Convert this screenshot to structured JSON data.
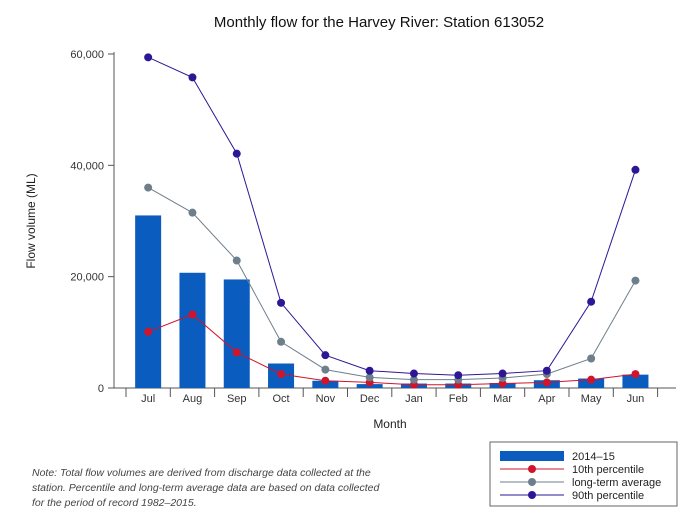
{
  "chart_data": {
    "type": "bar",
    "title": "Monthly flow for the Harvey River: Station 613052",
    "xlabel": "Month",
    "ylabel": "Flow volume (ML)",
    "ylim": [
      0,
      60000
    ],
    "yticks": [
      0,
      20000,
      40000,
      60000
    ],
    "ytick_labels": [
      "0",
      "20,000",
      "40,000",
      "60,000"
    ],
    "grid": false,
    "legend_position": "bottom-right",
    "categories": [
      "Jul",
      "Aug",
      "Sep",
      "Oct",
      "Nov",
      "Dec",
      "Jan",
      "Feb",
      "Mar",
      "Apr",
      "May",
      "Jun"
    ],
    "series": [
      {
        "name": "2014–15",
        "type": "bar",
        "color": "#0b5cbf",
        "values": [
          31000,
          20700,
          19500,
          4400,
          1300,
          700,
          800,
          800,
          900,
          1400,
          1700,
          2400
        ]
      },
      {
        "name": "10th percentile",
        "type": "line",
        "color": "#d0142c",
        "values": [
          10100,
          13200,
          6400,
          2500,
          1300,
          1000,
          600,
          600,
          800,
          1000,
          1500,
          2500
        ]
      },
      {
        "name": "long-term average",
        "type": "line",
        "color": "#6e7f8c",
        "values": [
          36000,
          31500,
          22900,
          8300,
          3300,
          1900,
          1500,
          1500,
          1800,
          2500,
          5300,
          19300
        ]
      },
      {
        "name": "90th percentile",
        "type": "line",
        "color": "#2e1796",
        "values": [
          59400,
          55800,
          42100,
          15300,
          5900,
          3100,
          2600,
          2300,
          2600,
          3100,
          15500,
          39200
        ]
      }
    ]
  },
  "note": "Note: Total flow volumes are derived from discharge data collected at the station. Percentile and long-term average data are based on data collected for the period of record 1982–2015."
}
